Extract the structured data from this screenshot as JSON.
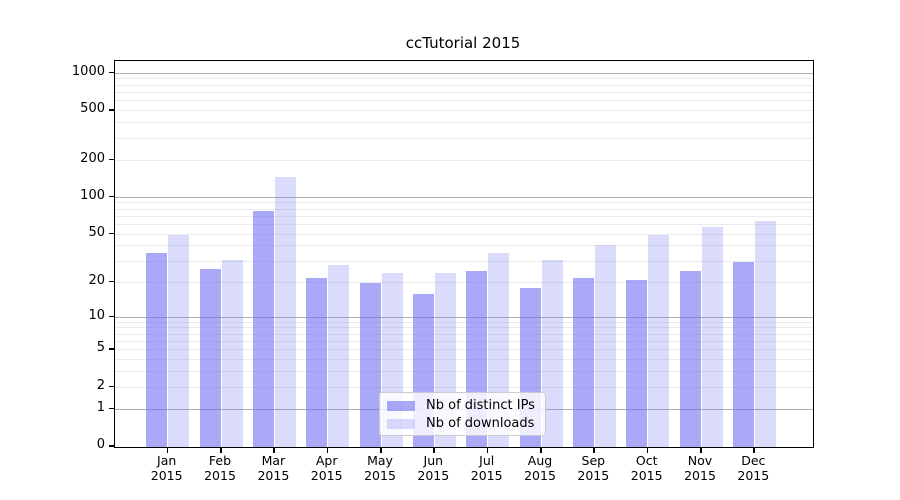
{
  "chart_data": {
    "type": "bar",
    "title": "ccTutorial 2015",
    "categories": [
      "Jan",
      "Feb",
      "Mar",
      "Apr",
      "May",
      "Jun",
      "Jul",
      "Aug",
      "Sep",
      "Oct",
      "Nov",
      "Dec"
    ],
    "year": "2015",
    "series": [
      {
        "name": "Nb of distinct IPs",
        "values": [
          35,
          26,
          78,
          22,
          20,
          16,
          25,
          18,
          22,
          21,
          25,
          30
        ],
        "color": "rgba(112,112,242,0.6)"
      },
      {
        "name": "Nb of downloads",
        "values": [
          50,
          31,
          148,
          28,
          24,
          24,
          35,
          31,
          41,
          50,
          58,
          65
        ],
        "color": "rgba(112,112,242,0.25)"
      }
    ],
    "xlabel": "",
    "ylabel": "",
    "y_ticks": [
      0,
      1,
      2,
      5,
      10,
      20,
      50,
      100,
      200,
      500,
      1000
    ],
    "y_scale": "log10(value+1)",
    "ylim": [
      0,
      1240
    ],
    "grid": {
      "major_values": [
        1,
        10,
        100,
        1000
      ],
      "major_color": "#b0b0b0",
      "minor_color": "#ebebeb",
      "vertical_gridlines": false
    },
    "legend_position": "lower center",
    "legend_border_color": "#cccccc",
    "axis_color": "#000000",
    "background_color": "#ffffff"
  }
}
